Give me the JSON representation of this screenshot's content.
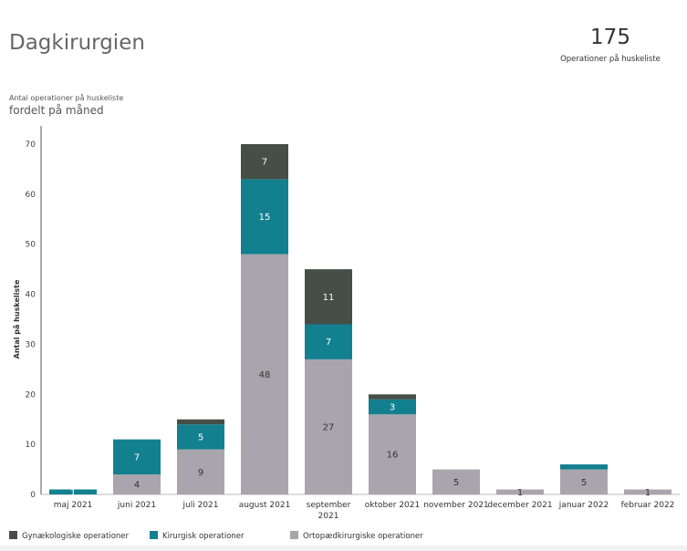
{
  "header": {
    "title": "Dagkirurgien",
    "kpi_value": "175",
    "kpi_label": "Operationer på huskeliste"
  },
  "colors": {
    "gynae": "#454e47",
    "kirurgisk": "#13808f",
    "ortho": "#a8a5ad",
    "axis": "#333333"
  },
  "chart_data": {
    "type": "bar",
    "stacked": true,
    "title": "fordelt på måned",
    "subtitle": "Antal operationer på huskeliste",
    "xlabel": "",
    "ylabel": "Antal på huskeliste",
    "ylim": [
      0,
      70
    ],
    "yticks": [
      0,
      10,
      20,
      30,
      40,
      50,
      60,
      70
    ],
    "grid": false,
    "legend_position": "bottom-left",
    "categories": [
      "maj 2021",
      "juni 2021",
      "juli 2021",
      "august 2021",
      "september 2021",
      "oktober 2021",
      "november 2021",
      "december 2021",
      "januar 2022",
      "februar 2022"
    ],
    "category_lines": [
      [
        "maj 2021"
      ],
      [
        "juni 2021"
      ],
      [
        "juli 2021"
      ],
      [
        "august 2021"
      ],
      [
        "september",
        "2021"
      ],
      [
        "oktober 2021"
      ],
      [
        "november 2021"
      ],
      [
        "december 2021"
      ],
      [
        "januar 2022"
      ],
      [
        "februar 2022"
      ]
    ],
    "series": [
      {
        "name": "Ortopædkirurgiske operationer",
        "key": "ortho",
        "values": [
          0,
          4,
          9,
          48,
          27,
          16,
          5,
          1,
          5,
          1
        ],
        "labels": [
          "",
          "4",
          "9",
          "48",
          "27",
          "16",
          "5",
          "1",
          "5",
          "1"
        ]
      },
      {
        "name": "Kirurgisk operationer",
        "key": "kirurgisk",
        "values": [
          1,
          7,
          5,
          15,
          7,
          3,
          0,
          0,
          1,
          0
        ],
        "labels": [
          "1",
          "7",
          "5",
          "15",
          "7",
          "3",
          "",
          "",
          "",
          ""
        ]
      },
      {
        "name": "Gynækologiske operationer",
        "key": "gynae",
        "values": [
          0,
          0,
          1,
          7,
          11,
          1,
          0,
          0,
          0,
          0
        ],
        "labels": [
          "",
          "",
          "",
          "7",
          "11",
          "",
          "",
          "",
          "",
          ""
        ]
      }
    ],
    "legend_order": [
      "gynae",
      "kirurgisk",
      "ortho"
    ]
  }
}
